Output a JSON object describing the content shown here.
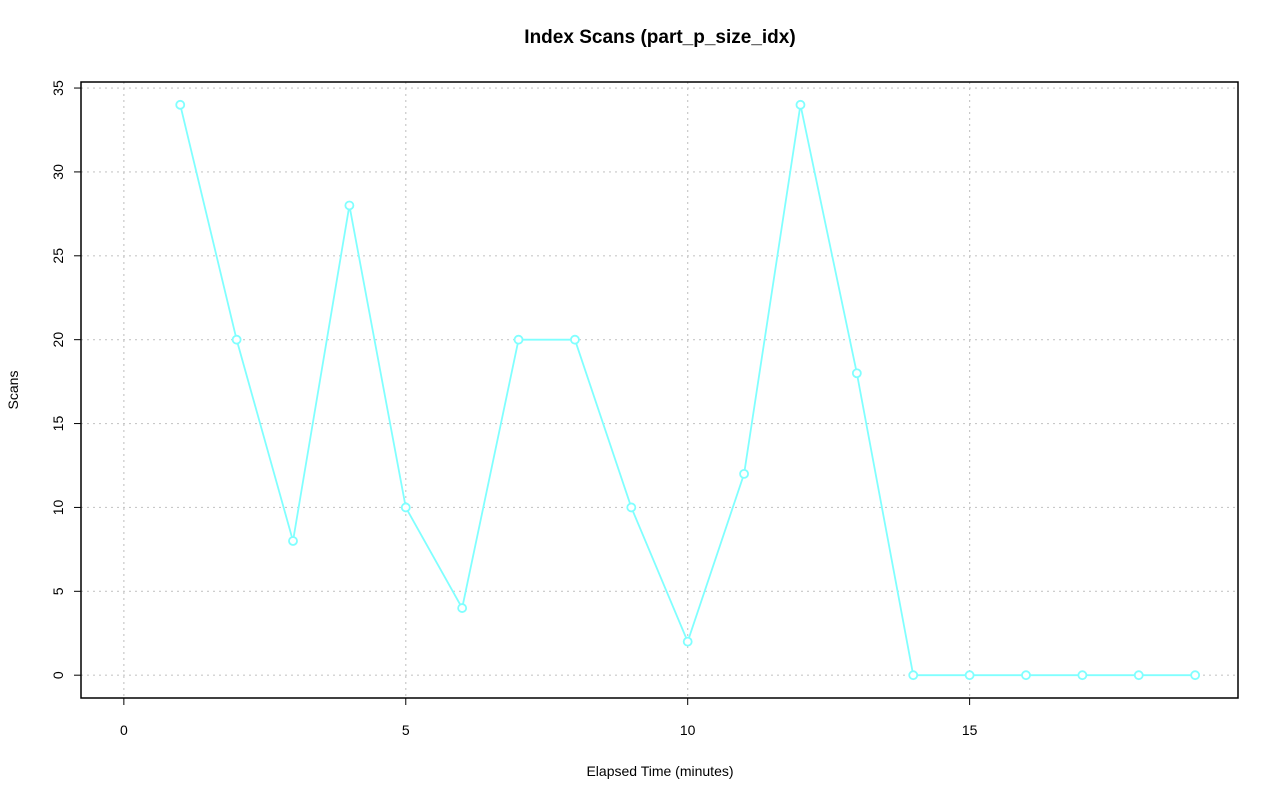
{
  "chart_data": {
    "type": "line",
    "title": "Index Scans (part_p_size_idx)",
    "x_label": "Elapsed Time (minutes)",
    "y_label": "Scans",
    "x": [
      1,
      2,
      3,
      4,
      5,
      6,
      7,
      8,
      9,
      10,
      11,
      12,
      13,
      14,
      15,
      16,
      17,
      18,
      19
    ],
    "series": [
      {
        "name": "part_p_size_idx",
        "color": "#80ffff",
        "values": [
          34,
          20,
          8,
          28,
          10,
          4,
          20,
          20,
          10,
          2,
          12,
          34,
          18,
          0,
          0,
          0,
          0,
          0,
          0
        ]
      }
    ],
    "xlim": [
      -0.76,
      19.76
    ],
    "ylim": [
      -1.36,
      35.36
    ],
    "xticks": [
      0,
      5,
      10,
      15
    ],
    "yticks": [
      0,
      5,
      10,
      15,
      20,
      25,
      30,
      35
    ],
    "grid": true
  }
}
